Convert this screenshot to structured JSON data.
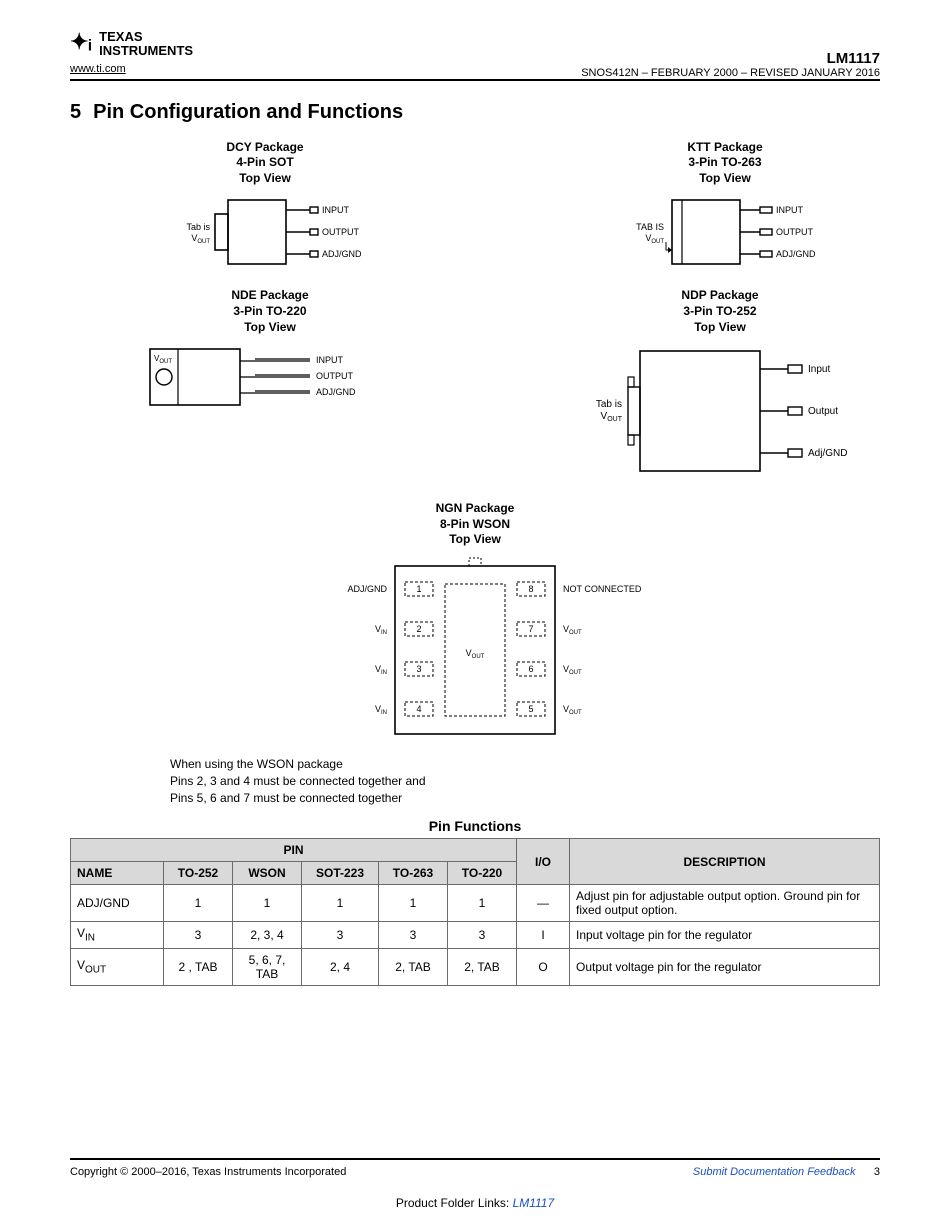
{
  "brand": {
    "line1": "TEXAS",
    "line2": "INSTRUMENTS"
  },
  "header": {
    "url": "www.ti.com",
    "part_number": "LM1117",
    "doc_id": "SNOS412N – FEBRUARY 2000 – REVISED JANUARY 2016"
  },
  "section": {
    "number": "5",
    "title": "Pin Configuration and Functions"
  },
  "packages": {
    "dcy": {
      "name": "DCY Package",
      "line2": "4-Pin SOT",
      "line3": "Top View",
      "pins": [
        "INPUT",
        "OUTPUT",
        "ADJ/GND"
      ],
      "tab_note": "Tab is",
      "tab_sub": "VOUT"
    },
    "ktt": {
      "name": "KTT Package",
      "line2": "3-Pin TO-263",
      "line3": "Top View",
      "pins": [
        "INPUT",
        "OUTPUT",
        "ADJ/GND"
      ],
      "tab_note": "TAB IS",
      "tab_sub": "VOUT"
    },
    "nde": {
      "name": "NDE Package",
      "line2": "3-Pin TO-220",
      "line3": "Top View",
      "pins": [
        "INPUT",
        "OUTPUT",
        "ADJ/GND"
      ],
      "tab_note": "VOUT"
    },
    "ndp": {
      "name": "NDP Package",
      "line2": "3-Pin TO-252",
      "line3": "Top View",
      "pins": [
        "Input",
        "Output",
        "Adj/GND"
      ],
      "tab_note": "Tab is",
      "tab_sub": "VOUT"
    },
    "ngn": {
      "name": "NGN Package",
      "line2": "8-Pin WSON",
      "line3": "Top View",
      "left_labels": [
        "ADJ/GND",
        "VIN",
        "VIN",
        "VIN"
      ],
      "right_labels": [
        "NOT CONNECTED",
        "VOUT",
        "VOUT",
        "VOUT"
      ],
      "pad_label": "VOUT",
      "pin_numbers_left": [
        "1",
        "2",
        "3",
        "4"
      ],
      "pin_numbers_right": [
        "8",
        "7",
        "6",
        "5"
      ]
    }
  },
  "wson_note": {
    "l1": "When using the WSON package",
    "l2": "Pins 2, 3 and 4 must be connected together and",
    "l3": "Pins 5, 6 and 7 must be connected together"
  },
  "table": {
    "title": "Pin Functions",
    "headers": {
      "pin": "PIN",
      "name": "NAME",
      "c1": "TO-252",
      "c2": "WSON",
      "c3": "SOT-223",
      "c4": "TO-263",
      "c5": "TO-220",
      "io": "I/O",
      "desc": "DESCRIPTION"
    },
    "rows": [
      {
        "name_html": "ADJ/GND",
        "c1": "1",
        "c2": "1",
        "c3": "1",
        "c4": "1",
        "c5": "1",
        "io": "—",
        "desc": "Adjust pin for adjustable output option. Ground pin for fixed output option."
      },
      {
        "name_html": "V<sub>IN</sub>",
        "c1": "3",
        "c2": "2, 3, 4",
        "c3": "3",
        "c4": "3",
        "c5": "3",
        "io": "I",
        "desc": "Input voltage pin for the regulator"
      },
      {
        "name_html": "V<sub>OUT</sub>",
        "c1": "2 , TAB",
        "c2": "5, 6, 7, TAB",
        "c3": "2, 4",
        "c4": "2, TAB",
        "c5": "2, TAB",
        "io": "O",
        "desc": "Output voltage pin for the regulator"
      }
    ]
  },
  "footer": {
    "copyright": "Copyright © 2000–2016, Texas Instruments Incorporated",
    "feedback": "Submit Documentation Feedback",
    "page": "3",
    "product_line": "Product Folder Links:",
    "product_link": "LM1117"
  },
  "style": {
    "stroke": "#000000",
    "stroke_width": 1.6,
    "dashed": "3,2",
    "text_color": "#000000",
    "pin_font_size": 9,
    "title_font_size": 12
  }
}
